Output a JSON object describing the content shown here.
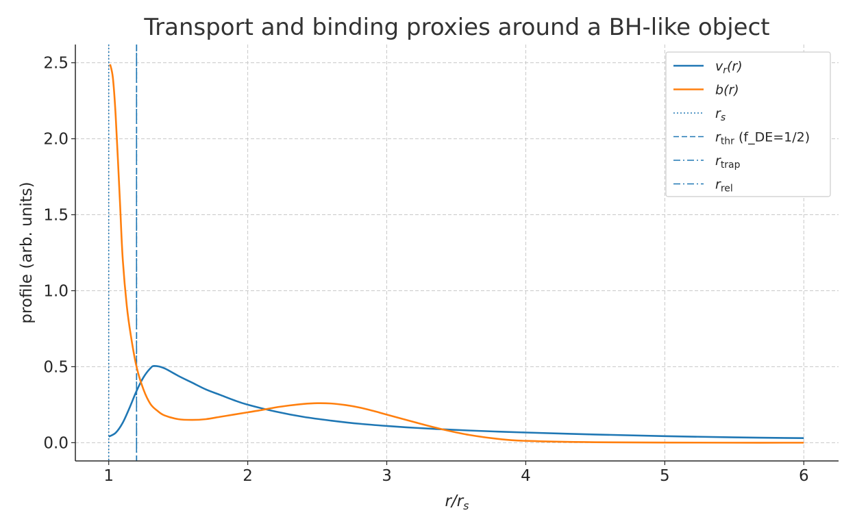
{
  "chart_data": {
    "type": "line",
    "title": "Transport and binding proxies around a BH-like object",
    "xlabel": {
      "main": "r/r",
      "sub": "s"
    },
    "ylabel": "profile (arb. units)",
    "xlim": [
      0.76,
      6.25
    ],
    "ylim": [
      -0.12,
      2.62
    ],
    "xticks": [
      1,
      2,
      3,
      4,
      5,
      6
    ],
    "xtick_labels": [
      "1",
      "2",
      "3",
      "4",
      "5",
      "6"
    ],
    "yticks": [
      0.0,
      0.5,
      1.0,
      1.5,
      2.0,
      2.5
    ],
    "ytick_labels": [
      "0.0",
      "0.5",
      "1.0",
      "1.5",
      "2.0",
      "2.5"
    ],
    "grid": true,
    "legend_position": "top-right",
    "colors": {
      "blue": "#1f77b4",
      "orange": "#ff7f0e"
    },
    "series": [
      {
        "name": "v_r(r)",
        "color": "#1f77b4",
        "x": [
          1.0,
          1.05,
          1.1,
          1.15,
          1.2,
          1.25,
          1.3,
          1.33,
          1.4,
          1.5,
          1.6,
          1.7,
          1.8,
          1.9,
          2.0,
          2.2,
          2.4,
          2.6,
          2.8,
          3.0,
          3.2,
          3.4,
          3.6,
          3.8,
          4.0,
          4.5,
          5.0,
          5.5,
          6.0
        ],
        "y": [
          0.04,
          0.065,
          0.13,
          0.23,
          0.34,
          0.43,
          0.49,
          0.505,
          0.49,
          0.44,
          0.395,
          0.35,
          0.315,
          0.28,
          0.25,
          0.205,
          0.17,
          0.145,
          0.125,
          0.11,
          0.098,
          0.088,
          0.08,
          0.073,
          0.067,
          0.054,
          0.043,
          0.035,
          0.03
        ]
      },
      {
        "name": "b(r)",
        "color": "#ff7f0e",
        "x": [
          1.01,
          1.03,
          1.05,
          1.08,
          1.1,
          1.13,
          1.16,
          1.2,
          1.25,
          1.3,
          1.35,
          1.4,
          1.5,
          1.6,
          1.7,
          1.8,
          1.9,
          2.0,
          2.1,
          2.2,
          2.3,
          2.4,
          2.5,
          2.6,
          2.7,
          2.8,
          2.9,
          3.0,
          3.2,
          3.4,
          3.6,
          3.8,
          4.0,
          4.5,
          5.0,
          5.5,
          6.0
        ],
        "y": [
          2.49,
          2.4,
          2.15,
          1.6,
          1.22,
          0.9,
          0.7,
          0.5,
          0.35,
          0.255,
          0.21,
          0.18,
          0.155,
          0.15,
          0.155,
          0.17,
          0.185,
          0.2,
          0.215,
          0.232,
          0.245,
          0.255,
          0.26,
          0.258,
          0.248,
          0.232,
          0.21,
          0.185,
          0.135,
          0.088,
          0.05,
          0.025,
          0.012,
          0.003,
          0.001,
          0.0,
          0.0
        ]
      }
    ],
    "vlines": [
      {
        "name": "r_s",
        "x": 1.0,
        "style": "dotted",
        "color": "#1f77b4"
      },
      {
        "name": "r_thr (f_DE=1/2)",
        "x": 1.2,
        "style": "dashed",
        "color": "#1f77b4"
      },
      {
        "name": "r_trap",
        "x": 1.2,
        "style": "dashdot",
        "color": "#1f77b4"
      },
      {
        "name": "r_rel",
        "x": 1.2,
        "style": "dashdot",
        "color": "#1f77b4"
      }
    ],
    "legend": [
      {
        "main": "v",
        "sub": "r",
        "rest": "(r)"
      },
      {
        "main": "b",
        "sub": "",
        "rest": "(r)"
      },
      {
        "main": "r",
        "sub": "s",
        "rest": ""
      },
      {
        "main": "r",
        "sub": "thr",
        "rest": " (f_DE=1/2)"
      },
      {
        "main": "r",
        "sub": "trap",
        "rest": ""
      },
      {
        "main": "r",
        "sub": "rel",
        "rest": ""
      }
    ]
  }
}
